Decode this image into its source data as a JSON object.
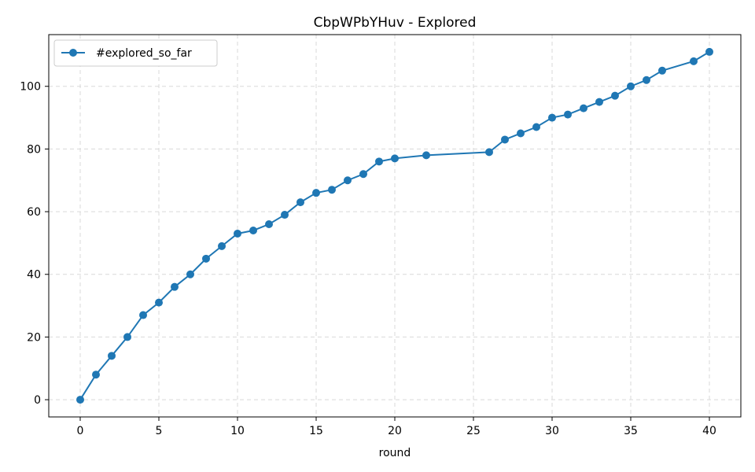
{
  "chart_data": {
    "type": "line",
    "title": "CbpWPbYHuv - Explored",
    "xlabel": "round",
    "ylabel": "",
    "xlim": [
      -2,
      42
    ],
    "ylim": [
      -5.5,
      116.5
    ],
    "xticks": [
      0,
      5,
      10,
      15,
      20,
      25,
      30,
      35,
      40
    ],
    "yticks": [
      0,
      20,
      40,
      60,
      80,
      100
    ],
    "grid": true,
    "legend_position": "top-left",
    "series": [
      {
        "name": "#explored_so_far",
        "color": "#1f77b4",
        "marker": "circle",
        "x": [
          0,
          1,
          2,
          3,
          4,
          5,
          6,
          7,
          8,
          9,
          10,
          11,
          12,
          13,
          14,
          15,
          16,
          17,
          18,
          19,
          20,
          22,
          26,
          27,
          28,
          29,
          30,
          31,
          32,
          33,
          34,
          35,
          36,
          37,
          39,
          40
        ],
        "y": [
          0,
          8,
          14,
          20,
          27,
          31,
          36,
          40,
          45,
          49,
          53,
          54,
          56,
          59,
          63,
          66,
          67,
          70,
          72,
          76,
          77,
          78,
          79,
          83,
          85,
          87,
          90,
          91,
          93,
          95,
          97,
          100,
          102,
          105,
          108,
          111
        ]
      }
    ]
  }
}
